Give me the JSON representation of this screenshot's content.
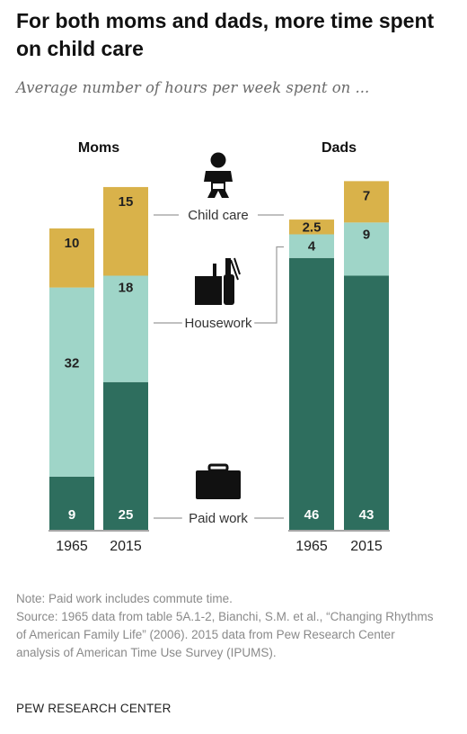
{
  "title": "For both moms and dads, more time spent on child care",
  "subtitle": "Average number of hours per week spent on ...",
  "colors": {
    "child_care": "#d9b24a",
    "housework": "#9fd5c8",
    "paid_work": "#2e6e5e",
    "axis": "#888888",
    "connector": "#9a9a9a"
  },
  "icons": {
    "child_care": "baby-icon",
    "housework": "dustpan-brush-icon",
    "paid_work": "briefcase-icon"
  },
  "chart_data": {
    "type": "bar",
    "stacked": true,
    "groups": [
      "Moms",
      "Dads"
    ],
    "categories": [
      "1965",
      "2015"
    ],
    "series": [
      {
        "name": "Paid work",
        "key": "paid_work",
        "values": {
          "Moms": [
            9,
            25
          ],
          "Dads": [
            46,
            43
          ]
        }
      },
      {
        "name": "Housework",
        "key": "housework",
        "values": {
          "Moms": [
            32,
            18
          ],
          "Dads": [
            4,
            9
          ]
        }
      },
      {
        "name": "Child care",
        "key": "child_care",
        "values": {
          "Moms": [
            10,
            15
          ],
          "Dads": [
            2.5,
            7
          ]
        }
      }
    ],
    "ylim": [
      0,
      60
    ]
  },
  "footer": {
    "note": "Note: Paid work includes commute time.",
    "source": "Source: 1965 data from table 5A.1-2, Bianchi, S.M. et al., “Changing Rhythms of American Family Life” (2006). 2015 data from Pew Research Center analysis of American Time Use Survey (IPUMS)."
  },
  "brand": "PEW RESEARCH CENTER"
}
